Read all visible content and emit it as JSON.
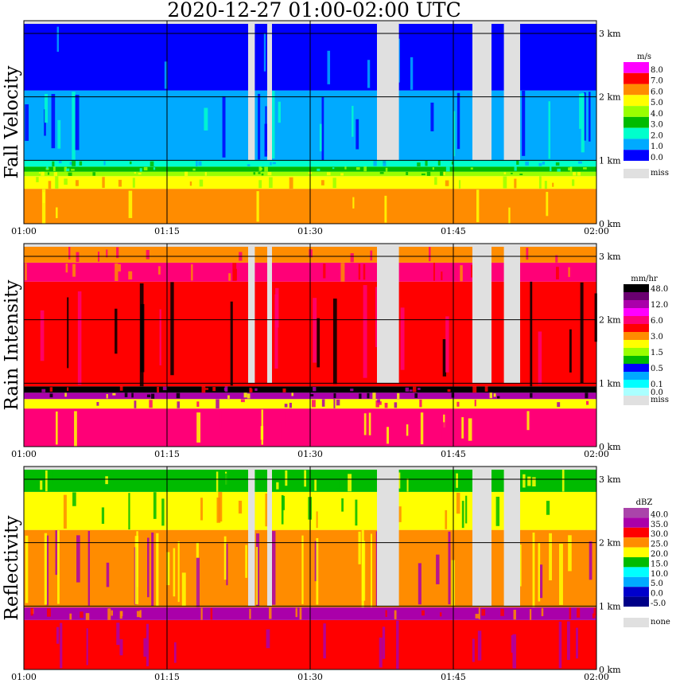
{
  "title": "2020-12-27   01:00-02:00 UTC",
  "chart_data": [
    {
      "type": "heatmap",
      "ylabel": "Fall Velocity",
      "unit": "m/s",
      "x_ticks": [
        "01:00",
        "01:15",
        "01:30",
        "01:45",
        "02:00"
      ],
      "y_ticks": [
        "0 km",
        "1 km",
        "2 km",
        "3 km"
      ],
      "ylim": [
        0,
        3.2
      ],
      "colorbar": [
        {
          "label": "8.0",
          "color": "#ff00ff"
        },
        {
          "label": "7.0",
          "color": "#ff0000"
        },
        {
          "label": "6.0",
          "color": "#ff8c00"
        },
        {
          "label": "5.0",
          "color": "#ffff00"
        },
        {
          "label": "4.0",
          "color": "#99ff00"
        },
        {
          "label": "3.0",
          "color": "#00bb00"
        },
        {
          "label": "2.0",
          "color": "#00ffcc"
        },
        {
          "label": "1.0",
          "color": "#00aaff"
        },
        {
          "label": "0.0",
          "color": "#0000ff"
        }
      ],
      "miss_label": "miss",
      "miss_color": "#e0e0e0",
      "layers": [
        {
          "from_km": 0.0,
          "to_km": 0.55,
          "color": "#ff8c00"
        },
        {
          "from_km": 0.55,
          "to_km": 0.75,
          "color": "#ffff00"
        },
        {
          "from_km": 0.75,
          "to_km": 0.82,
          "color": "#99ff00"
        },
        {
          "from_km": 0.82,
          "to_km": 0.9,
          "color": "#00bb00"
        },
        {
          "from_km": 0.9,
          "to_km": 1.0,
          "color": "#00ffcc"
        },
        {
          "from_km": 1.0,
          "to_km": 2.1,
          "color": "#00aaff"
        },
        {
          "from_km": 2.1,
          "to_km": 3.15,
          "color": "#0000ff"
        }
      ],
      "gaps": [
        [
          23.5,
          24.2
        ],
        [
          25.5,
          26.0
        ],
        [
          37.0,
          39.3
        ],
        [
          47.0,
          49.0
        ],
        [
          50.3,
          52.0
        ]
      ]
    },
    {
      "type": "heatmap",
      "ylabel": "Rain Intensity",
      "unit": "mm/hr",
      "x_ticks": [
        "01:00",
        "01:15",
        "01:30",
        "01:45",
        "02:00"
      ],
      "y_ticks": [
        "0 km",
        "1 km",
        "2 km",
        "3 km"
      ],
      "ylim": [
        0,
        3.2
      ],
      "colorbar": [
        {
          "label": "48.0",
          "color": "#000000"
        },
        {
          "label": "",
          "color": "#6a0070"
        },
        {
          "label": "12.0",
          "color": "#aa00aa"
        },
        {
          "label": "",
          "color": "#ff00ff"
        },
        {
          "label": "6.0",
          "color": "#ff0077"
        },
        {
          "label": "",
          "color": "#ff0000"
        },
        {
          "label": "3.0",
          "color": "#ff8c00"
        },
        {
          "label": "",
          "color": "#ffff00"
        },
        {
          "label": "1.5",
          "color": "#99ff00"
        },
        {
          "label": "",
          "color": "#00bb00"
        },
        {
          "label": "0.5",
          "color": "#0000ff"
        },
        {
          "label": "",
          "color": "#00aaff"
        },
        {
          "label": "0.1",
          "color": "#00ffff"
        },
        {
          "label": "0.0",
          "color": "#aaffff"
        }
      ],
      "miss_label": "miss",
      "miss_color": "#e0e0e0",
      "layers": [
        {
          "from_km": 0.0,
          "to_km": 0.6,
          "color": "#ff0077"
        },
        {
          "from_km": 0.6,
          "to_km": 0.75,
          "color": "#ffff00"
        },
        {
          "from_km": 0.75,
          "to_km": 0.85,
          "color": "#aa00aa"
        },
        {
          "from_km": 0.85,
          "to_km": 0.95,
          "color": "#000000"
        },
        {
          "from_km": 0.95,
          "to_km": 2.6,
          "color": "#ff0000"
        },
        {
          "from_km": 2.6,
          "to_km": 2.9,
          "color": "#ff0077"
        },
        {
          "from_km": 2.9,
          "to_km": 3.15,
          "color": "#ff8c00"
        }
      ],
      "gaps": [
        [
          23.5,
          24.2
        ],
        [
          25.5,
          26.0
        ],
        [
          37.0,
          39.3
        ],
        [
          47.0,
          49.0
        ],
        [
          50.3,
          52.0
        ]
      ]
    },
    {
      "type": "heatmap",
      "ylabel": "Reflectivity",
      "unit": "dBZ",
      "x_ticks": [
        "01:00",
        "01:15",
        "01:30",
        "01:45",
        "02:00"
      ],
      "y_ticks": [
        "0 km",
        "1 km",
        "2 km",
        "3 km"
      ],
      "ylim": [
        0,
        3.2
      ],
      "colorbar": [
        {
          "label": "40.0",
          "color": "#aa44aa"
        },
        {
          "label": "35.0",
          "color": "#aa00aa"
        },
        {
          "label": "30.0",
          "color": "#ff0000"
        },
        {
          "label": "25.0",
          "color": "#ff8c00"
        },
        {
          "label": "20.0",
          "color": "#ffff00"
        },
        {
          "label": "15.0",
          "color": "#00bb00"
        },
        {
          "label": "10.0",
          "color": "#00ffff"
        },
        {
          "label": "5.0",
          "color": "#00aaff"
        },
        {
          "label": "0.0",
          "color": "#0000cc"
        },
        {
          "label": "-5.0",
          "color": "#000088"
        }
      ],
      "miss_label": "none",
      "miss_color": "#e0e0e0",
      "layers": [
        {
          "from_km": 0.0,
          "to_km": 0.78,
          "color": "#ff0000"
        },
        {
          "from_km": 0.78,
          "to_km": 0.98,
          "color": "#aa00aa"
        },
        {
          "from_km": 0.98,
          "to_km": 2.2,
          "color": "#ff8c00"
        },
        {
          "from_km": 2.2,
          "to_km": 2.8,
          "color": "#ffff00"
        },
        {
          "from_km": 2.8,
          "to_km": 3.15,
          "color": "#00bb00"
        }
      ],
      "gaps": [
        [
          23.5,
          24.2
        ],
        [
          25.5,
          26.0
        ],
        [
          37.0,
          39.3
        ],
        [
          47.0,
          49.0
        ],
        [
          50.3,
          52.0
        ]
      ]
    }
  ]
}
